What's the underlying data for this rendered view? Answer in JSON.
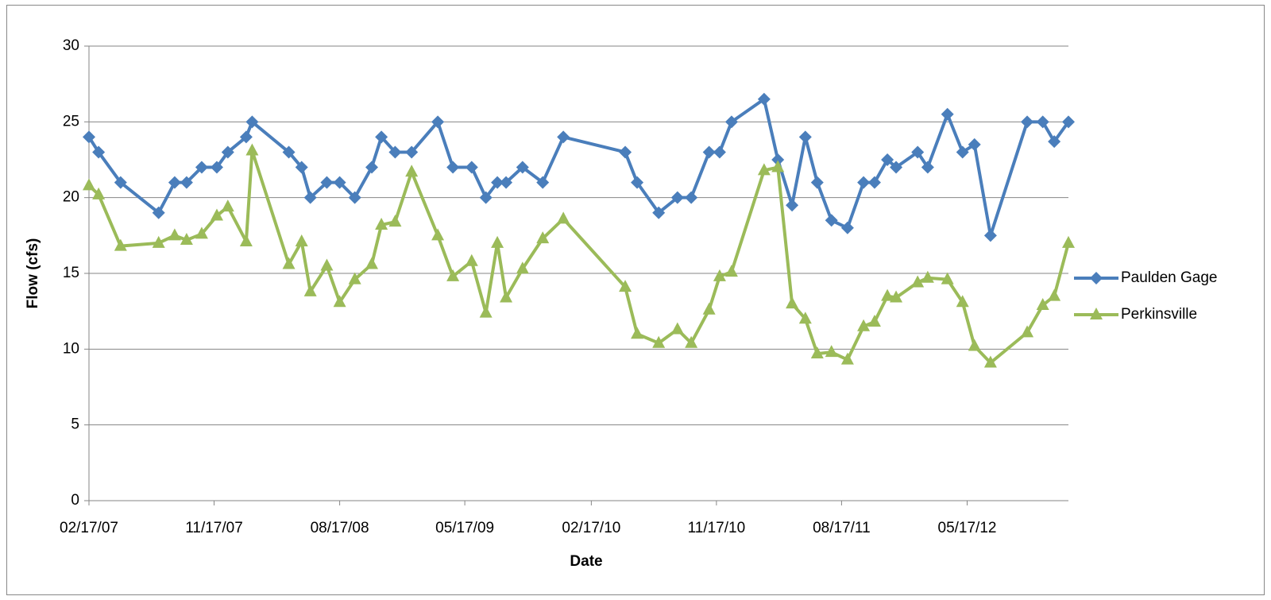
{
  "chart_data": {
    "type": "line",
    "y_label": "Flow (cfs)",
    "x_label": "Date",
    "x": [
      "2007-02-17",
      "2007-03-10",
      "2007-04-27",
      "2007-07-19",
      "2007-08-23",
      "2007-09-18",
      "2007-10-21",
      "2007-11-23",
      "2007-12-17",
      "2008-01-26",
      "2008-02-08",
      "2008-04-28",
      "2008-05-26",
      "2008-06-14",
      "2008-07-20",
      "2008-08-17",
      "2008-09-19",
      "2008-10-26",
      "2008-11-16",
      "2008-12-16",
      "2009-01-21",
      "2009-03-19",
      "2009-04-21",
      "2009-06-01",
      "2009-07-02",
      "2009-07-27",
      "2009-08-15",
      "2009-09-20",
      "2009-11-03",
      "2009-12-18",
      "2010-05-02",
      "2010-05-28",
      "2010-07-14",
      "2010-08-24",
      "2010-09-23",
      "2010-11-01",
      "2010-11-24",
      "2010-12-20",
      "2011-03-01",
      "2011-03-31",
      "2011-05-01",
      "2011-05-30",
      "2011-06-25",
      "2011-07-26",
      "2011-08-30",
      "2011-10-04",
      "2011-10-28",
      "2011-11-25",
      "2011-12-14",
      "2012-01-30",
      "2012-02-21",
      "2012-04-04",
      "2012-05-07",
      "2012-06-02",
      "2012-07-07",
      "2012-09-25",
      "2012-10-29",
      "2012-11-23",
      "2012-12-24"
    ],
    "series": [
      {
        "name": "Paulden Gage",
        "color": "#4a7ebb",
        "marker": "diamond",
        "values": [
          24,
          23,
          21,
          19,
          21,
          21,
          22,
          22,
          23,
          24,
          25,
          23,
          22,
          20,
          21,
          21,
          20,
          22,
          24,
          23,
          23,
          25,
          22,
          22,
          20,
          21,
          21,
          22,
          21,
          24,
          23,
          21,
          19,
          20,
          20,
          23,
          23,
          25,
          26.5,
          22.5,
          19.5,
          24,
          21,
          18.5,
          18,
          21,
          21,
          22.5,
          22,
          23,
          22,
          25.5,
          23,
          23.5,
          17.5,
          25,
          25,
          23.7,
          25
        ]
      },
      {
        "name": "Perkinsville",
        "color": "#9bbb59",
        "marker": "triangle",
        "values": [
          20.8,
          20.2,
          16.8,
          17.0,
          17.5,
          17.2,
          17.6,
          18.8,
          19.4,
          17.1,
          23.1,
          15.6,
          17.1,
          13.8,
          15.5,
          13.1,
          14.6,
          15.6,
          18.2,
          18.4,
          21.7,
          17.5,
          14.8,
          15.8,
          12.4,
          17.0,
          13.4,
          15.3,
          17.3,
          18.6,
          14.1,
          11.0,
          10.4,
          11.3,
          10.4,
          12.6,
          14.8,
          15.1,
          21.8,
          22.0,
          13.0,
          12.0,
          9.7,
          9.8,
          9.3,
          11.5,
          11.8,
          13.5,
          13.4,
          14.4,
          14.7,
          14.6,
          13.1,
          10.2,
          9.1,
          11.1,
          12.9,
          13.5,
          17.0
        ]
      }
    ],
    "xlim": [
      "2007-02-17",
      "2012-12-24"
    ],
    "xticks": [
      {
        "value": "2007-02-17",
        "label": "02/17/07"
      },
      {
        "value": "2007-11-17",
        "label": "11/17/07"
      },
      {
        "value": "2008-08-17",
        "label": "08/17/08"
      },
      {
        "value": "2009-05-17",
        "label": "05/17/09"
      },
      {
        "value": "2010-02-17",
        "label": "02/17/10"
      },
      {
        "value": "2010-11-17",
        "label": "11/17/10"
      },
      {
        "value": "2011-08-17",
        "label": "08/17/11"
      },
      {
        "value": "2012-05-17",
        "label": "05/17/12"
      }
    ],
    "ylim": [
      0,
      30
    ],
    "yticks": [
      0,
      5,
      10,
      15,
      20,
      25,
      30
    ],
    "grid": true,
    "legend": "right"
  }
}
